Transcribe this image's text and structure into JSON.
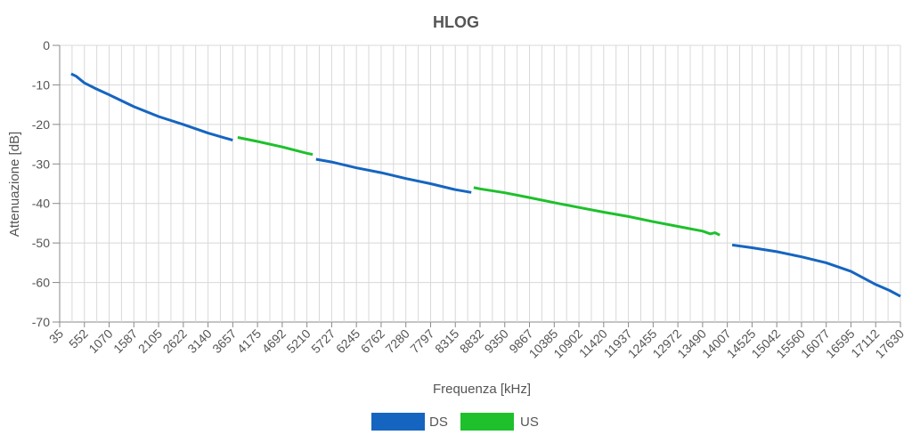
{
  "chart_data": {
    "type": "line",
    "title": "HLOG",
    "xlabel": "Frequenza [kHz]",
    "ylabel": "Attenuazione [dB]",
    "x_tick_labels": [
      "35",
      "552",
      "1070",
      "1587",
      "2105",
      "2622",
      "3140",
      "3657",
      "4175",
      "4692",
      "5210",
      "5727",
      "6245",
      "6762",
      "7280",
      "7797",
      "8315",
      "8832",
      "9350",
      "9867",
      "10385",
      "10902",
      "11420",
      "11937",
      "12455",
      "12972",
      "13490",
      "14007",
      "14525",
      "15042",
      "15560",
      "16077",
      "16595",
      "17112",
      "17630"
    ],
    "y_ticks": [
      0,
      -10,
      -20,
      -30,
      -40,
      -50,
      -60,
      -70
    ],
    "xlim": [
      35,
      17630
    ],
    "ylim": [
      -70,
      0
    ],
    "grid": true,
    "legend_position": "bottom",
    "series": [
      {
        "name": "DS",
        "color": "#1565c0",
        "points": [
          [
            276,
            -7.2
          ],
          [
            380,
            -7.8
          ],
          [
            552,
            -9.5
          ],
          [
            800,
            -11.0
          ],
          [
            1070,
            -12.5
          ],
          [
            1587,
            -15.5
          ],
          [
            2105,
            -18.0
          ],
          [
            2622,
            -20.0
          ],
          [
            3140,
            -22.2
          ],
          [
            3657,
            -24.0
          ]
        ]
      },
      {
        "name": "US",
        "color": "#1ec02c",
        "points": [
          [
            3760,
            -23.3
          ],
          [
            4175,
            -24.3
          ],
          [
            4692,
            -25.7
          ],
          [
            5210,
            -27.3
          ],
          [
            5330,
            -27.6
          ]
        ]
      },
      {
        "name": "DS",
        "color": "#1565c0",
        "points": [
          [
            5400,
            -28.8
          ],
          [
            5727,
            -29.5
          ],
          [
            6245,
            -31.0
          ],
          [
            6762,
            -32.2
          ],
          [
            7280,
            -33.7
          ],
          [
            7797,
            -35.0
          ],
          [
            8315,
            -36.5
          ],
          [
            8650,
            -37.2
          ]
        ]
      },
      {
        "name": "US",
        "color": "#1ec02c",
        "points": [
          [
            8700,
            -36.0
          ],
          [
            8832,
            -36.3
          ],
          [
            9350,
            -37.3
          ],
          [
            9867,
            -38.5
          ],
          [
            10385,
            -39.8
          ],
          [
            10902,
            -41.0
          ],
          [
            11420,
            -42.2
          ],
          [
            11937,
            -43.3
          ],
          [
            12455,
            -44.6
          ],
          [
            12972,
            -45.8
          ],
          [
            13490,
            -47.0
          ],
          [
            13650,
            -47.7
          ],
          [
            13750,
            -47.4
          ],
          [
            13850,
            -48.0
          ]
        ]
      },
      {
        "name": "DS",
        "color": "#1565c0",
        "points": [
          [
            14110,
            -50.5
          ],
          [
            14525,
            -51.2
          ],
          [
            15042,
            -52.2
          ],
          [
            15560,
            -53.5
          ],
          [
            16077,
            -55.0
          ],
          [
            16595,
            -57.2
          ],
          [
            17112,
            -60.5
          ],
          [
            17400,
            -62.0
          ],
          [
            17630,
            -63.5
          ]
        ]
      }
    ],
    "legend": [
      {
        "name": "DS",
        "color": "#1565c0"
      },
      {
        "name": "US",
        "color": "#1ec02c"
      }
    ]
  }
}
